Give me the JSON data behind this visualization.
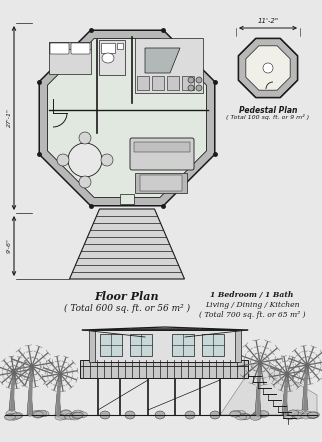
{
  "bg_color": "#e8e8e8",
  "title_floor": "Floor Plan",
  "subtitle_floor": "( Total 600 sq. ft. or 56 m² )",
  "title_pedestal": "Pedestal Plan",
  "subtitle_pedestal": "( Total 100 sq. ft. or 9 m² )",
  "info_line1": "1 Bedroom / 1 Bath",
  "info_line2": "Living / Dining / Kitchen",
  "info_line3": "( Total 700 sq. ft. or 65 m² )",
  "dim_width": "11'-2\"",
  "dim_height_top": "27'-1\"",
  "dim_height_bot": "9'-6\"",
  "lc": "#1a1a1a",
  "wall_fill": "#b8b8b8",
  "floor_fill": "#e0e8e0",
  "light_fill": "#d8d8d8",
  "mid_fill": "#c0c0c0"
}
